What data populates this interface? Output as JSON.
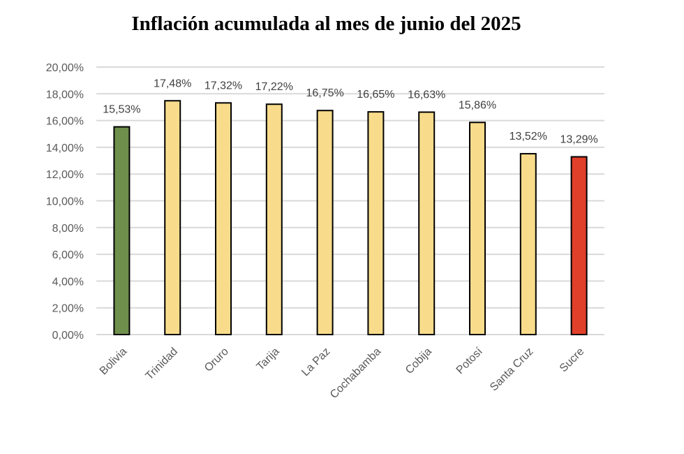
{
  "chart_data": {
    "type": "bar",
    "title": "Inflación acumulada al mes de junio del 2025",
    "xlabel": "",
    "ylabel": "",
    "categories": [
      "Bolivia",
      "Trinidad",
      "Oruro",
      "Tarija",
      "La Paz",
      "Cochabamba",
      "Cobija",
      "Potosí",
      "Santa Cruz",
      "Sucre"
    ],
    "values": [
      15.53,
      17.48,
      17.32,
      17.22,
      16.75,
      16.65,
      16.63,
      15.86,
      13.52,
      13.29
    ],
    "data_labels": [
      "15,53%",
      "17,48%",
      "17,32%",
      "17,22%",
      "16,75%",
      "16,65%",
      "16,63%",
      "15,86%",
      "13,52%",
      "13,29%"
    ],
    "bar_colors": [
      "#6f8f4c",
      "#f8dc8c",
      "#f8dc8c",
      "#f8dc8c",
      "#f8dc8c",
      "#f8dc8c",
      "#f8dc8c",
      "#f8dc8c",
      "#f8dc8c",
      "#e0402a"
    ],
    "ylim": [
      0,
      20
    ],
    "yticks": [
      0,
      2,
      4,
      6,
      8,
      10,
      12,
      14,
      16,
      18,
      20
    ],
    "ytick_labels": [
      "0,00%",
      "2,00%",
      "4,00%",
      "6,00%",
      "8,00%",
      "10,00%",
      "12,00%",
      "14,00%",
      "16,00%",
      "18,00%",
      "20,00%"
    ],
    "grid": true,
    "legend": "none",
    "colors": {
      "grid": "#d9d9d9",
      "bar_border": "#000000",
      "axis_text": "#595959",
      "label_text": "#404040"
    }
  }
}
